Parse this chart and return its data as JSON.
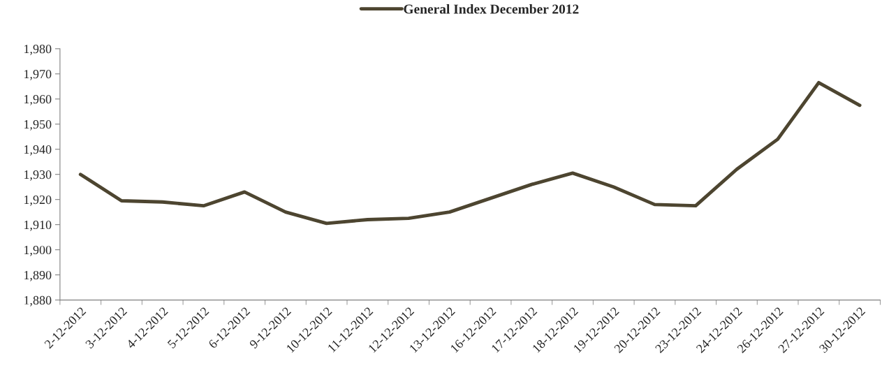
{
  "chart_data": {
    "type": "line",
    "categories": [
      "2-12-2012",
      "3-12-2012",
      "4-12-2012",
      "5-12-2012",
      "6-12-2012",
      "9-12-2012",
      "10-12-2012",
      "11-12-2012",
      "12-12-2012",
      "13-12-2012",
      "16-12-2012",
      "17-12-2012",
      "18-12-2012",
      "19-12-2012",
      "20-12-2012",
      "23-12-2012",
      "24-12-2012",
      "26-12-2012",
      "27-12-2012",
      "30-12-2012"
    ],
    "series": [
      {
        "name": "General Index December 2012",
        "color": "#4d4530",
        "values": [
          1930,
          1919.5,
          1919,
          1917.5,
          1923,
          1915,
          1910.5,
          1912,
          1912.5,
          1915,
          1920.5,
          1926,
          1930.5,
          1925,
          1918,
          1917.5,
          1932,
          1944,
          1966.5,
          1957.5
        ]
      }
    ],
    "ylim": [
      1880,
      1980
    ],
    "yticks": [
      {
        "value": 1880,
        "label": "1,880"
      },
      {
        "value": 1890,
        "label": "1,890"
      },
      {
        "value": 1900,
        "label": "1,900"
      },
      {
        "value": 1910,
        "label": "1,910"
      },
      {
        "value": 1920,
        "label": "1,920"
      },
      {
        "value": 1930,
        "label": "1,930"
      },
      {
        "value": 1940,
        "label": "1,940"
      },
      {
        "value": 1950,
        "label": "1,950"
      },
      {
        "value": 1960,
        "label": "1,960"
      },
      {
        "value": 1970,
        "label": "1,970"
      },
      {
        "value": 1980,
        "label": "1,980"
      }
    ],
    "legend": "top",
    "grid": false,
    "marker": "none",
    "line_style": "solid"
  }
}
